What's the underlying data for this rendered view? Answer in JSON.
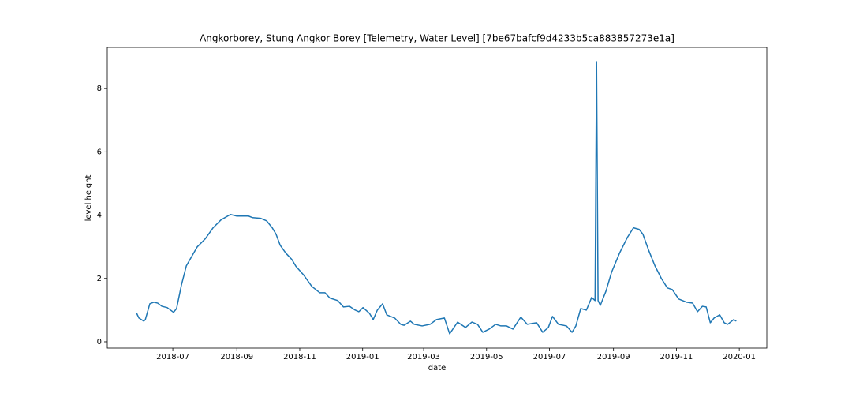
{
  "chart_data": {
    "type": "line",
    "title": "Angkorborey, Stung Angkor Borey [Telemetry, Water Level] [7be67bafcf9d4233b5ca883857273e1a]",
    "xlabel": "date",
    "ylabel": "level height",
    "x": [
      2018.4,
      2018.406,
      2018.419,
      2018.423,
      2018.435,
      2018.446,
      2018.456,
      2018.467,
      2018.481,
      2018.498,
      2018.506,
      2018.519,
      2018.532,
      2018.544,
      2018.561,
      2018.582,
      2018.603,
      2018.624,
      2018.649,
      2018.666,
      2018.697,
      2018.708,
      2018.729,
      2018.745,
      2018.76,
      2018.77,
      2018.781,
      2018.796,
      2018.812,
      2018.823,
      2018.844,
      2018.865,
      2018.886,
      2018.9,
      2018.913,
      2018.934,
      2018.949,
      2018.965,
      2018.98,
      2018.99,
      2019.001,
      2019.018,
      2019.028,
      2019.039,
      2019.053,
      2019.064,
      2019.085,
      2019.101,
      2019.11,
      2019.127,
      2019.137,
      2019.158,
      2019.179,
      2019.196,
      2019.217,
      2019.231,
      2019.252,
      2019.273,
      2019.29,
      2019.305,
      2019.319,
      2019.336,
      2019.353,
      2019.367,
      2019.382,
      2019.399,
      2019.42,
      2019.437,
      2019.462,
      2019.478,
      2019.493,
      2019.504,
      2019.52,
      2019.541,
      2019.556,
      2019.566,
      2019.579,
      2019.594,
      2019.608,
      2019.617,
      2019.621,
      2019.625,
      2019.631,
      2019.646,
      2019.661,
      2019.682,
      2019.703,
      2019.719,
      2019.734,
      2019.744,
      2019.759,
      2019.776,
      2019.793,
      2019.809,
      2019.822,
      2019.839,
      2019.86,
      2019.876,
      2019.889,
      2019.902,
      2019.912,
      2019.923,
      2019.933,
      2019.948,
      2019.96,
      2019.969,
      2019.985,
      2019.992
    ],
    "series": [
      {
        "color": "#1f77b4",
        "values": [
          0.9,
          0.75,
          0.65,
          0.7,
          1.2,
          1.25,
          1.22,
          1.12,
          1.08,
          0.93,
          1.05,
          1.8,
          2.4,
          2.65,
          3.0,
          3.25,
          3.6,
          3.85,
          4.02,
          3.97,
          3.97,
          3.92,
          3.9,
          3.82,
          3.6,
          3.4,
          3.05,
          2.8,
          2.6,
          2.38,
          2.1,
          1.75,
          1.55,
          1.55,
          1.38,
          1.3,
          1.1,
          1.12,
          1.0,
          0.95,
          1.08,
          0.9,
          0.7,
          1.0,
          1.2,
          0.85,
          0.75,
          0.55,
          0.52,
          0.65,
          0.55,
          0.5,
          0.55,
          0.7,
          0.75,
          0.25,
          0.62,
          0.45,
          0.62,
          0.55,
          0.3,
          0.4,
          0.55,
          0.5,
          0.5,
          0.4,
          0.78,
          0.55,
          0.6,
          0.3,
          0.45,
          0.8,
          0.55,
          0.5,
          0.3,
          0.5,
          1.05,
          1.0,
          1.4,
          1.3,
          8.85,
          1.3,
          1.15,
          1.6,
          2.2,
          2.8,
          3.3,
          3.6,
          3.55,
          3.4,
          2.9,
          2.4,
          2.0,
          1.7,
          1.65,
          1.35,
          1.25,
          1.22,
          0.95,
          1.12,
          1.1,
          0.6,
          0.75,
          0.85,
          0.6,
          0.55,
          0.7,
          0.65
        ]
      }
    ],
    "xlim": [
      2018.322,
      2020.073
    ],
    "xticks": [
      {
        "value": 2018.496,
        "label": "2018-07"
      },
      {
        "value": 2018.666,
        "label": "2018-09"
      },
      {
        "value": 2018.833,
        "label": "2018-11"
      },
      {
        "value": 2019.0,
        "label": "2019-01"
      },
      {
        "value": 2019.162,
        "label": "2019-03"
      },
      {
        "value": 2019.329,
        "label": "2019-05"
      },
      {
        "value": 2019.496,
        "label": "2019-07"
      },
      {
        "value": 2019.666,
        "label": "2019-09"
      },
      {
        "value": 2019.833,
        "label": "2019-11"
      },
      {
        "value": 2020.0,
        "label": "2020-01"
      }
    ],
    "ylim": [
      -0.2,
      9.3
    ],
    "yticks": [
      0,
      2,
      4,
      6,
      8
    ]
  }
}
